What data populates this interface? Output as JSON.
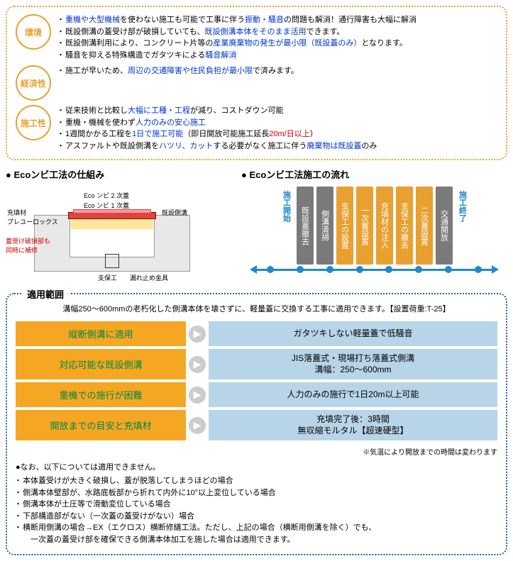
{
  "features": {
    "groups": [
      {
        "badge": "環境",
        "items": [
          {
            "pre": "",
            "hl": "重機や大型機械",
            "hlc": "blue",
            "mid": "を使わない施工も可能で工事に伴う",
            "hl2": "振動・騒音",
            "hl2c": "blue",
            "post": "の問題も解消！通行障害も大幅に解消"
          },
          {
            "pre": "既設側溝の蓋受け部が破損していても、",
            "hl": "既設側溝本体をそのまま活用",
            "hlc": "blue",
            "post": "できます。"
          },
          {
            "pre": "既設側溝利用により、コンクリート片等の",
            "hl": "産業廃棄物の発生が最小限（既設蓋のみ）",
            "hlc": "blue",
            "post": "となります。"
          },
          {
            "pre": "騒音を抑える特殊構造でガタツキによる",
            "hl": "騒音解消",
            "hlc": "blue",
            "post": ""
          }
        ]
      },
      {
        "badge": "経済性",
        "items": [
          {
            "pre": "施工が早いため、",
            "hl": "周辺の交通障害や住民負担が最小限",
            "hlc": "blue",
            "post": "で済みます。"
          }
        ]
      },
      {
        "badge": "施工性",
        "items": [
          {
            "pre": "従来技術と比較し",
            "hl": "大幅に工種・工程",
            "hlc": "blue",
            "post": "が減り、コストダウン可能"
          },
          {
            "pre": "重機・機械を使わず",
            "hl": "人力のみの安心施工",
            "hlc": "blue",
            "post": ""
          },
          {
            "pre": "1週間かかる工程を",
            "hl": "1日で施工可能",
            "hlc": "blue",
            "mid": "（即日開放可能施工延長",
            "hl2": "20m/日以上",
            "hl2c": "red",
            "post": "）"
          },
          {
            "pre": "アスファルトや既設側溝を",
            "hl": "ハツリ、カット",
            "hlc": "blue",
            "mid": "する必要がなく施工に伴う",
            "hl2": "廃棄物は既設蓋",
            "hl2c": "blue",
            "post": "のみ"
          }
        ]
      }
    ]
  },
  "mechanism": {
    "title": "Ecoンビ工法の仕組み",
    "labels": {
      "fill": "充填材\nプレユーロックス",
      "damage": "蓋受け破損部も\n同時に補修",
      "lid2": "Eco ンビ 2 次蓋",
      "lid1": "Eco ンビ 1 次蓋",
      "existing": "既設側溝",
      "support": "支保工",
      "stopper": "漏れ止め金具"
    }
  },
  "flow": {
    "title": "Ecoンビ工法施工の流れ",
    "start": "施工開始",
    "end": "施工終了",
    "steps": [
      {
        "label": "既設蓋撤去",
        "c": "gray"
      },
      {
        "label": "側溝清掃",
        "c": "gray"
      },
      {
        "label": "支保工の設置",
        "c": "orange"
      },
      {
        "label": "一次蓋設置",
        "c": "orange"
      },
      {
        "label": "充填材の注入",
        "c": "orange"
      },
      {
        "label": "支保工の撤去",
        "c": "orange"
      },
      {
        "label": "二次蓋設置",
        "c": "orange"
      },
      {
        "label": "交通開放",
        "c": "gray"
      }
    ]
  },
  "scope": {
    "title": "適用範囲",
    "desc": "溝幅250～600mmの老朽化した側溝本体を壊さずに、軽量蓋に交換する工事に適用できます。【設置荷重:T-25】",
    "rows": [
      {
        "l": "縦断側溝に適用",
        "r": "ガタツキしない軽量蓋で低騒音"
      },
      {
        "l": "対応可能な既設側溝",
        "r": "JIS落蓋式・現場打ち落蓋式側溝\n溝幅：250～600mm"
      },
      {
        "l": "重機での施行が困難",
        "r": "人力のみの施行で1日20m以上可能"
      },
      {
        "l": "開放までの目安と充填材",
        "r": "充填完了後：3時間\n無収縮モルタル【超速硬型】"
      }
    ],
    "note": "※気温により開放までの時間は変わります",
    "excl_title": "なお、以下については適用できません。",
    "exclusions": [
      "本体蓋受けが大きく破損し、蓋が脱落してしまうほどの場合",
      "側溝本体壁部が、水路底板部から折れて内外に10°以上変位している場合",
      "側溝本体が土圧等で滑動変位している場合",
      "下部構造部がない（一次蓋の蓋受けがない）場合",
      "横断用側溝の場合→EX（エクロス）横断修繕工法。ただし、上記の場合（横断用側溝を除く）でも、\n　一次蓋の蓋受け部を確保できる側溝本体加工を施した場合は適用できます。"
    ]
  }
}
